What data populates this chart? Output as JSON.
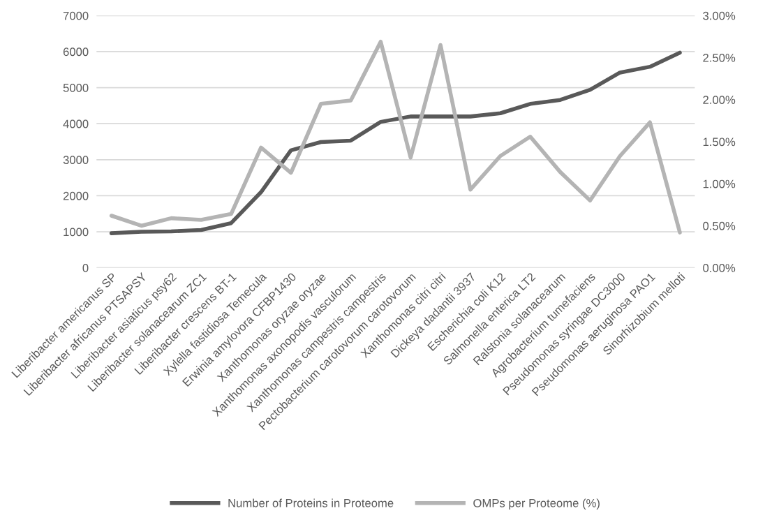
{
  "chart_data": {
    "type": "line",
    "categories": [
      "Liberibacter americanus SP",
      "Liberibacter africanus PTSAPSY",
      "Liberibacter asiaticus psy62",
      "Liberibacter solanacearum ZC1",
      "Liberibacter crescens BT-1",
      "Xylella fastidiosa Temecula",
      "Erwinia amylovora CFBP1430",
      "Xanthomonas oryzae oryzae",
      "Xanthomonas axonopodis vasculorum",
      "Xanthomonas campestris campestris",
      "Pectobacterium carotovorum carotovorum",
      "Xanthomonas citri citri",
      "Dickeya dadantii 3937",
      "Escherichia coli K12",
      "Salmonella enterica LT2",
      "Ralstonia solanacearum",
      "Agrobacterium tumefaciens",
      "Pseudomonas syringae DC3000",
      "Pseudomonas aeruginosa PAO1",
      "Sinorhizobium melloti"
    ],
    "series": [
      {
        "name": "Number of Proteins in Proteome",
        "color": "#595959",
        "values": [
          960,
          1000,
          1010,
          1050,
          1240,
          2100,
          3260,
          3490,
          3530,
          4050,
          4200,
          4200,
          4200,
          4290,
          4550,
          4660,
          4940,
          5420,
          5580,
          5970
        ]
      },
      {
        "name": "OMPs per Proteome (%)",
        "color": "#b4b4b4",
        "axis": "y2",
        "values": [
          0.62,
          0.5,
          0.59,
          0.57,
          0.64,
          1.43,
          1.13,
          1.95,
          1.99,
          2.69,
          1.31,
          2.65,
          0.93,
          1.33,
          1.56,
          1.14,
          0.8,
          1.33,
          1.73,
          0.42
        ]
      }
    ],
    "ylim": [
      0,
      7000
    ],
    "yticks": [
      0,
      1000,
      2000,
      3000,
      4000,
      5000,
      6000,
      7000
    ],
    "y2lim": [
      0,
      3
    ],
    "y2ticks": [
      {
        "value": 0,
        "label": "0.00%"
      },
      {
        "value": 0.5,
        "label": "0.50%"
      },
      {
        "value": 1,
        "label": "1.00%"
      },
      {
        "value": 1.5,
        "label": "1.50%"
      },
      {
        "value": 2,
        "label": "2.00%"
      },
      {
        "value": 2.5,
        "label": "2.50%"
      },
      {
        "value": 3,
        "label": "3.00%"
      }
    ],
    "grid": "y",
    "legend": "bottom",
    "line_style": "solid",
    "marker": "none"
  }
}
